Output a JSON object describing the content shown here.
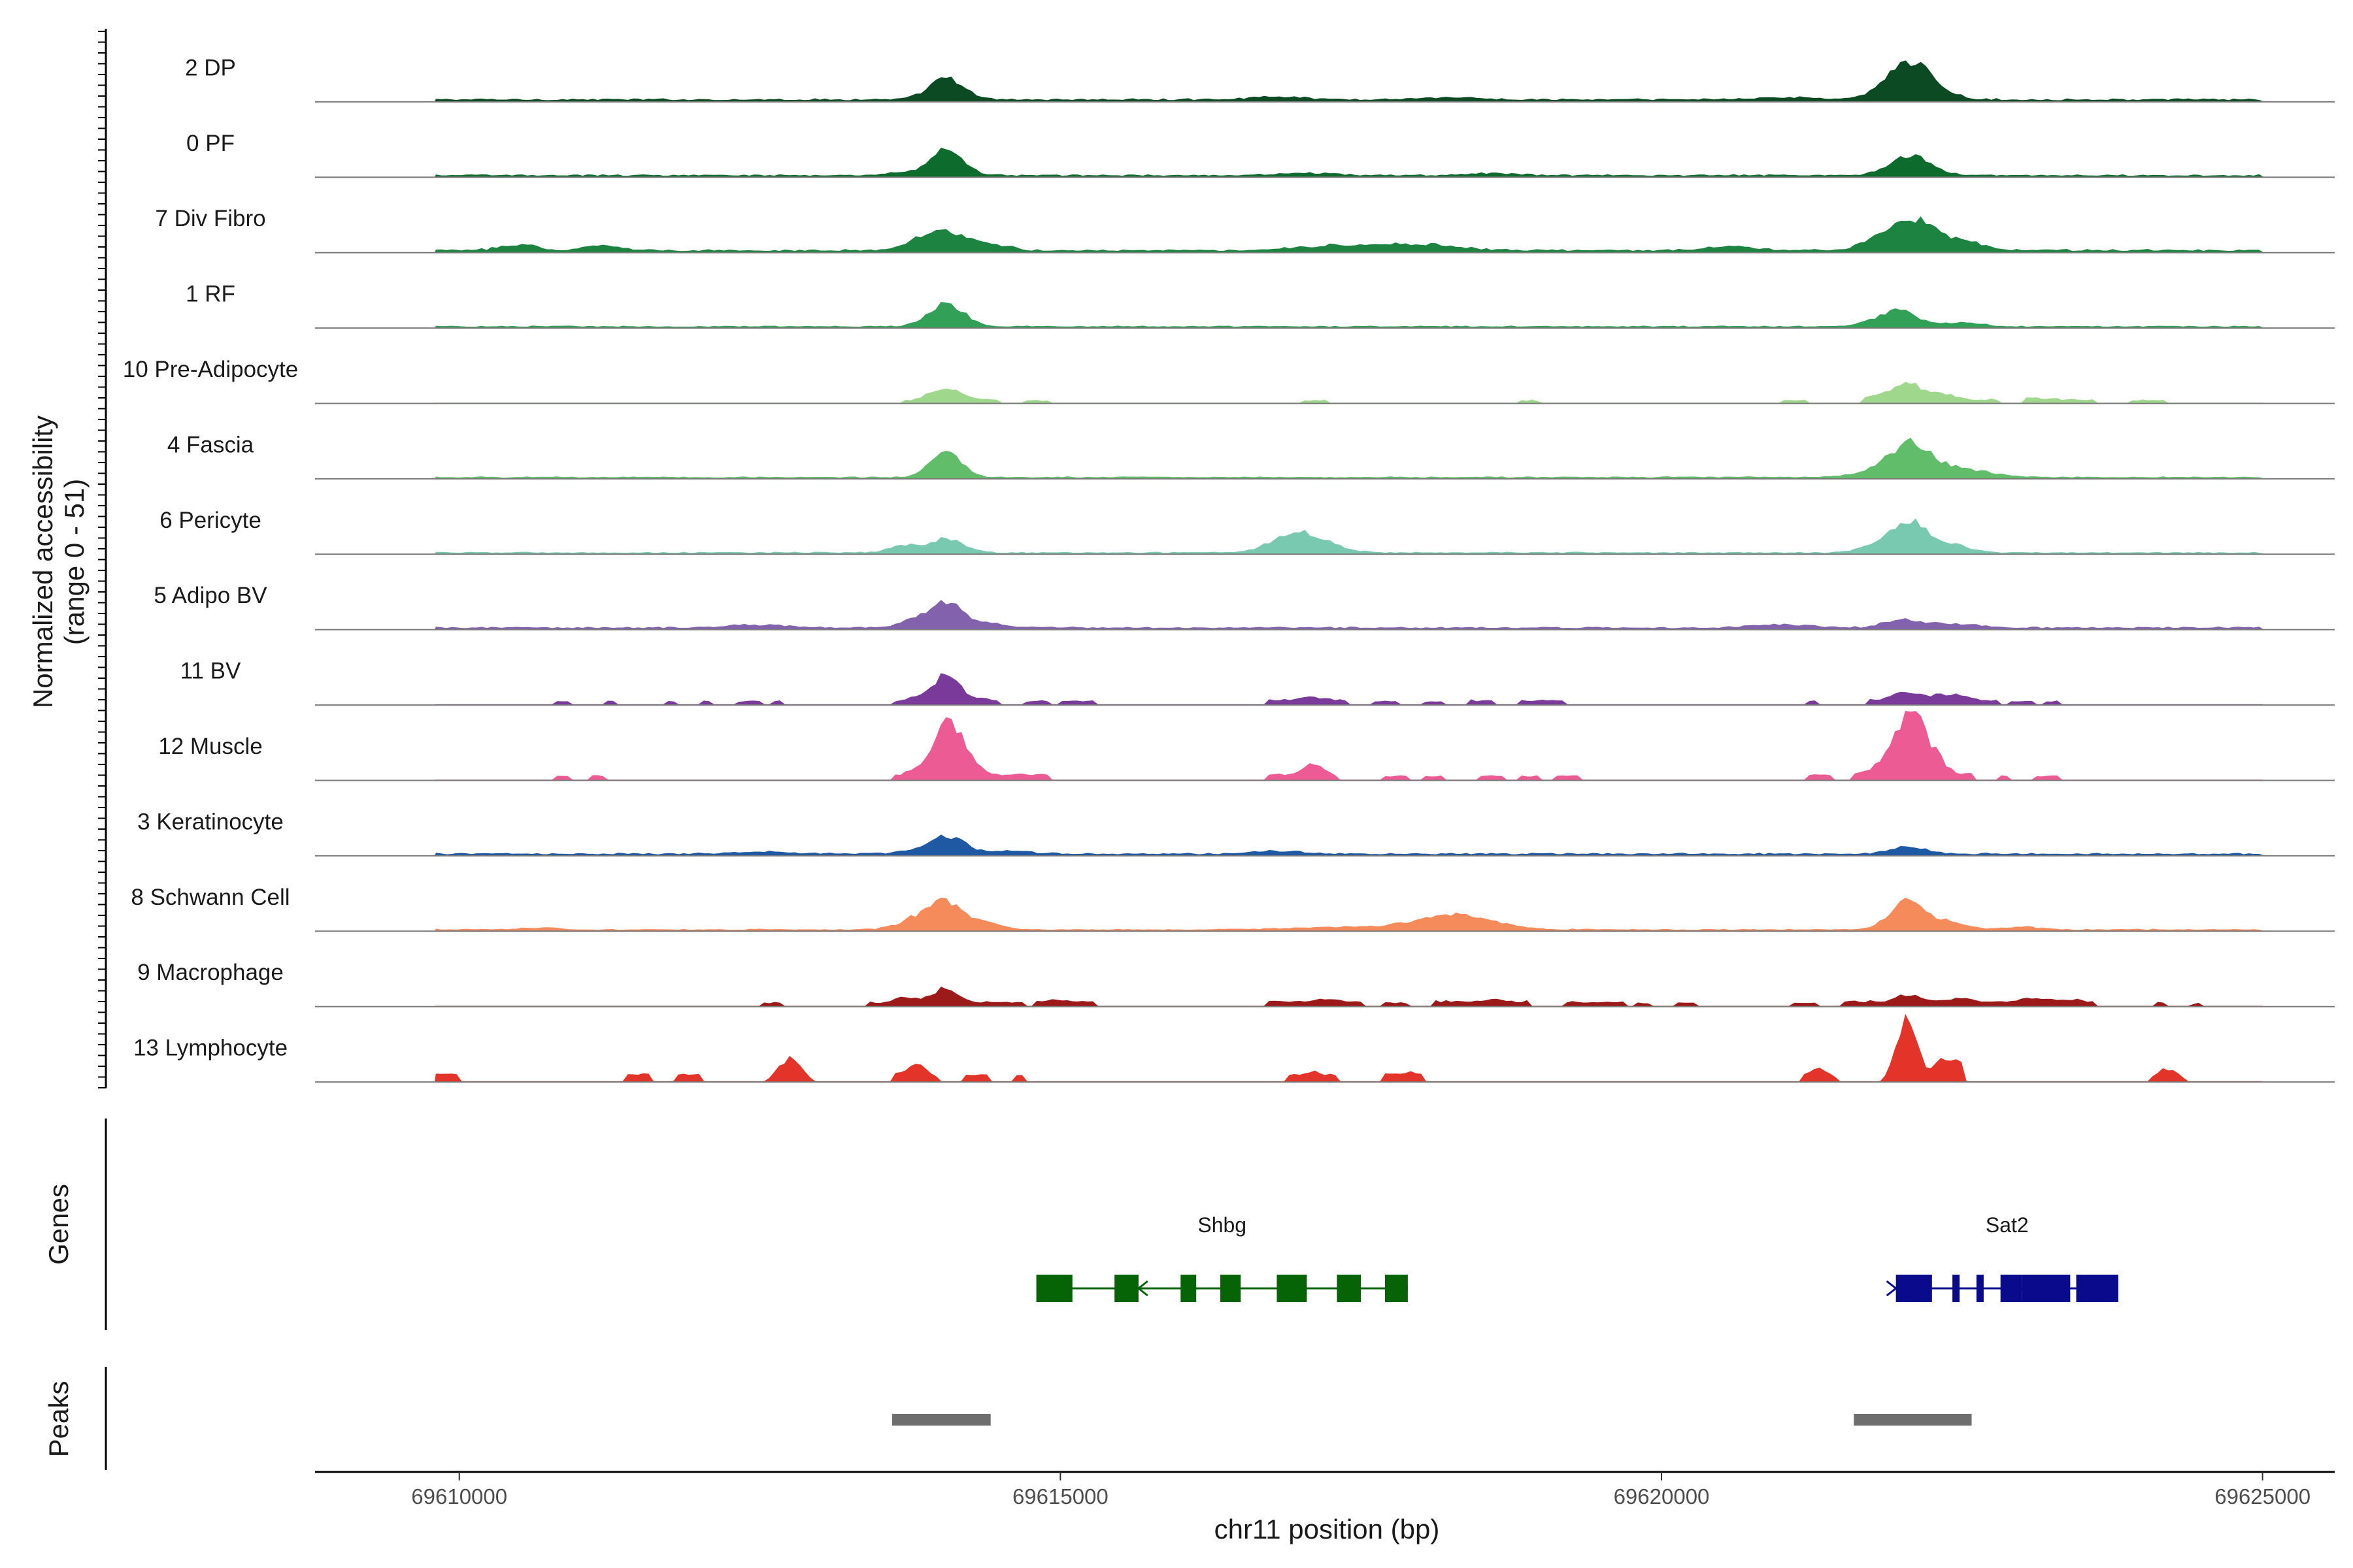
{
  "chart_data": {
    "type": "area",
    "ylabel_line1": "Normalized accessibility",
    "ylabel_line2": "(range 0 - 51)",
    "xlabel": "chr11 position (bp)",
    "xlim": [
      69608800,
      69625600
    ],
    "x_ticks": [
      69610000,
      69615000,
      69620000,
      69625000
    ],
    "x_tick_labels": [
      "69610000",
      "69615000",
      "69620000",
      "69625000"
    ],
    "ylim": [
      0,
      51
    ],
    "tracks": [
      {
        "label": "2 DP",
        "color": "#0b4a22",
        "style": "dense",
        "base": 2.5,
        "peaks": [
          [
            69614050,
            140,
            30
          ],
          [
            69622070,
            200,
            52
          ],
          [
            69616800,
            250,
            4
          ],
          [
            69618200,
            250,
            3
          ],
          [
            69621000,
            300,
            3
          ]
        ],
        "segments": []
      },
      {
        "label": "0 PF",
        "color": "#0e6b2e",
        "style": "dense",
        "base": 2,
        "peaks": [
          [
            69614060,
            130,
            40
          ],
          [
            69622070,
            170,
            28
          ],
          [
            69613700,
            150,
            4
          ],
          [
            69617000,
            250,
            3
          ],
          [
            69618600,
            200,
            3
          ]
        ],
        "segments": []
      },
      {
        "label": "7 Div Fibro",
        "color": "#1c8440",
        "style": "dense",
        "base": 2.5,
        "peaks": [
          [
            69614050,
            150,
            26
          ],
          [
            69613800,
            120,
            12
          ],
          [
            69614400,
            150,
            10
          ],
          [
            69622100,
            180,
            40
          ],
          [
            69621800,
            150,
            14
          ],
          [
            69622500,
            180,
            12
          ],
          [
            69610500,
            150,
            9
          ],
          [
            69611200,
            150,
            7
          ],
          [
            69617300,
            350,
            7
          ],
          [
            69618000,
            300,
            8
          ],
          [
            69620600,
            200,
            6
          ]
        ],
        "segments": []
      },
      {
        "label": "1 RF",
        "color": "#33a058",
        "style": "dense",
        "base": 1.5,
        "peaks": [
          [
            69614050,
            140,
            34
          ],
          [
            69622000,
            140,
            20
          ],
          [
            69621800,
            130,
            8
          ],
          [
            69622500,
            150,
            6
          ]
        ],
        "segments": []
      },
      {
        "label": "10 Pre-Adipocyte",
        "color": "#9fd88c",
        "style": "segments",
        "base": 1.5,
        "peaks": [
          [
            69614050,
            150,
            20
          ],
          [
            69622050,
            130,
            24
          ],
          [
            69621800,
            120,
            8
          ],
          [
            69622350,
            140,
            10
          ],
          [
            69623100,
            250,
            5
          ]
        ],
        "segments": [
          [
            69613700,
            69614500,
            3
          ],
          [
            69614700,
            69614900,
            2
          ],
          [
            69617000,
            69617200,
            2
          ],
          [
            69618800,
            69619000,
            2
          ],
          [
            69621000,
            69621200,
            2
          ],
          [
            69621700,
            69622800,
            3
          ],
          [
            69623000,
            69623600,
            3
          ],
          [
            69623900,
            69624200,
            2
          ]
        ]
      },
      {
        "label": "4 Fascia",
        "color": "#62bd6a",
        "style": "dense",
        "base": 1.5,
        "peaks": [
          [
            69614050,
            130,
            34
          ],
          [
            69622050,
            160,
            44
          ],
          [
            69622400,
            280,
            14
          ],
          [
            69621700,
            150,
            6
          ]
        ],
        "segments": []
      },
      {
        "label": "6 Pericyte",
        "color": "#79c9b1",
        "style": "dense",
        "base": 1.5,
        "peaks": [
          [
            69614050,
            140,
            20
          ],
          [
            69613700,
            120,
            10
          ],
          [
            69617000,
            220,
            30
          ],
          [
            69622050,
            150,
            48
          ],
          [
            69622400,
            150,
            12
          ],
          [
            69621700,
            120,
            6
          ]
        ],
        "segments": []
      },
      {
        "label": "5 Adipo BV",
        "color": "#8262ad",
        "style": "dense",
        "base": 2,
        "peaks": [
          [
            69614060,
            130,
            36
          ],
          [
            69613800,
            130,
            12
          ],
          [
            69614400,
            150,
            6
          ],
          [
            69622000,
            150,
            12
          ],
          [
            69622400,
            200,
            6
          ],
          [
            69621000,
            250,
            4
          ],
          [
            69612500,
            250,
            4
          ]
        ],
        "segments": []
      },
      {
        "label": "11 BV",
        "color": "#7a3a99",
        "style": "segments",
        "base": 1.5,
        "peaks": [
          [
            69614060,
            110,
            42
          ],
          [
            69613800,
            110,
            8
          ],
          [
            69614400,
            110,
            6
          ],
          [
            69622000,
            140,
            14
          ],
          [
            69622400,
            160,
            14
          ],
          [
            69617100,
            200,
            8
          ]
        ],
        "segments": [
          [
            69610800,
            69610900,
            3
          ],
          [
            69611200,
            69611300,
            3
          ],
          [
            69611700,
            69611800,
            3
          ],
          [
            69612000,
            69612100,
            3
          ],
          [
            69612300,
            69612500,
            3
          ],
          [
            69612600,
            69612700,
            3
          ],
          [
            69613600,
            69614500,
            4
          ],
          [
            69614700,
            69614900,
            3
          ],
          [
            69615000,
            69615300,
            3
          ],
          [
            69616700,
            69617400,
            5
          ],
          [
            69617600,
            69617800,
            3
          ],
          [
            69618000,
            69618200,
            3
          ],
          [
            69618400,
            69618600,
            4
          ],
          [
            69618800,
            69619200,
            4
          ],
          [
            69621200,
            69621300,
            4
          ],
          [
            69621700,
            69622800,
            5
          ],
          [
            69622900,
            69623100,
            3
          ],
          [
            69623200,
            69623300,
            3
          ]
        ]
      },
      {
        "label": "12 Muscle",
        "color": "#ec5b94",
        "style": "segments",
        "base": 1.5,
        "peaks": [
          [
            69614060,
            110,
            82
          ],
          [
            69614260,
            120,
            20
          ],
          [
            69613800,
            110,
            12
          ],
          [
            69622050,
            140,
            85
          ],
          [
            69622250,
            150,
            20
          ],
          [
            69621700,
            120,
            8
          ],
          [
            69617100,
            120,
            20
          ]
        ],
        "segments": [
          [
            69610800,
            69610900,
            4
          ],
          [
            69611100,
            69611200,
            4
          ],
          [
            69613600,
            69614900,
            6
          ],
          [
            69616700,
            69617300,
            6
          ],
          [
            69617700,
            69617900,
            4
          ],
          [
            69618000,
            69618200,
            4
          ],
          [
            69618500,
            69618700,
            4
          ],
          [
            69618800,
            69619000,
            4
          ],
          [
            69619100,
            69619300,
            4
          ],
          [
            69621200,
            69621400,
            6
          ],
          [
            69621700,
            69622600,
            8
          ],
          [
            69622800,
            69622900,
            4
          ],
          [
            69623100,
            69623300,
            4
          ]
        ]
      },
      {
        "label": "3 Keratinocyte",
        "color": "#1f59a3",
        "style": "dense",
        "base": 2,
        "peaks": [
          [
            69614060,
            130,
            24
          ],
          [
            69613800,
            150,
            4
          ],
          [
            69614500,
            250,
            4
          ],
          [
            69616800,
            200,
            4
          ],
          [
            69622050,
            150,
            10
          ],
          [
            69612500,
            250,
            3
          ]
        ],
        "segments": []
      },
      {
        "label": "8 Schwann Cell",
        "color": "#f58a5b",
        "style": "dense",
        "base": 1.5,
        "peaks": [
          [
            69614050,
            140,
            36
          ],
          [
            69613800,
            150,
            14
          ],
          [
            69614350,
            150,
            10
          ],
          [
            69618300,
            300,
            20
          ],
          [
            69622050,
            150,
            40
          ],
          [
            69622400,
            150,
            10
          ],
          [
            69617500,
            500,
            4
          ],
          [
            69623000,
            150,
            4
          ],
          [
            69610700,
            150,
            3
          ]
        ],
        "segments": []
      },
      {
        "label": "9 Macrophage",
        "color": "#9c1a1a",
        "style": "segments",
        "base": 1.5,
        "peaks": [
          [
            69614050,
            120,
            24
          ],
          [
            69613700,
            120,
            10
          ],
          [
            69622050,
            140,
            14
          ],
          [
            69622500,
            140,
            10
          ],
          [
            69623050,
            120,
            10
          ],
          [
            69623400,
            160,
            8
          ],
          [
            69617200,
            180,
            8
          ],
          [
            69618600,
            150,
            8
          ],
          [
            69615000,
            150,
            7
          ]
        ],
        "segments": [
          [
            69612500,
            69612700,
            3
          ],
          [
            69613400,
            69614700,
            4
          ],
          [
            69614800,
            69615300,
            5
          ],
          [
            69616700,
            69617500,
            5
          ],
          [
            69617700,
            69617900,
            3
          ],
          [
            69618100,
            69618900,
            5
          ],
          [
            69619200,
            69619700,
            4
          ],
          [
            69619800,
            69619900,
            3
          ],
          [
            69620100,
            69620300,
            3
          ],
          [
            69621100,
            69621300,
            3
          ],
          [
            69621500,
            69623000,
            5
          ],
          [
            69623200,
            69623600,
            5
          ],
          [
            69624100,
            69624200,
            3
          ],
          [
            69624400,
            69624500,
            2
          ]
        ]
      },
      {
        "label": "13 Lymphocyte",
        "color": "#e4342a",
        "style": "segments",
        "base": 0,
        "peaks": [
          [
            69622040,
            80,
            95
          ],
          [
            69622340,
            90,
            30
          ],
          [
            69612750,
            90,
            32
          ],
          [
            69613800,
            90,
            28
          ],
          [
            69621300,
            90,
            20
          ],
          [
            69617100,
            90,
            14
          ],
          [
            69617900,
            90,
            14
          ],
          [
            69624200,
            90,
            18
          ],
          [
            69609900,
            80,
            10
          ],
          [
            69611500,
            80,
            10
          ]
        ],
        "segments": [
          [
            69609800,
            69610000,
            10
          ],
          [
            69611400,
            69611600,
            10
          ],
          [
            69611800,
            69612000,
            10
          ],
          [
            69612600,
            69612900,
            12
          ],
          [
            69613600,
            69613900,
            12
          ],
          [
            69613900,
            69614000,
            8
          ],
          [
            69614200,
            69614400,
            10
          ],
          [
            69614600,
            69614700,
            10
          ],
          [
            69616900,
            69617300,
            10
          ],
          [
            69617700,
            69618000,
            10
          ],
          [
            69621200,
            69621400,
            10
          ],
          [
            69622100,
            69622300,
            6
          ],
          [
            69622300,
            69622500,
            30
          ],
          [
            69624100,
            69624300,
            10
          ]
        ]
      }
    ],
    "genes": [
      {
        "name": "Shbg",
        "color": "#066306",
        "start": 69614800,
        "end": 69617890,
        "strand": "-",
        "exons": [
          [
            69614800,
            69615100
          ],
          [
            69615450,
            69615650
          ],
          [
            69616000,
            69616130
          ],
          [
            69616330,
            69616500
          ],
          [
            69616800,
            69617050
          ],
          [
            69617300,
            69617500
          ],
          [
            69617700,
            69617800
          ],
          [
            69617760,
            69617890
          ]
        ]
      },
      {
        "name": "Sat2",
        "color": "#0a0a8c",
        "start": 69621950,
        "end": 69623800,
        "strand": "+",
        "exons": [
          [
            69621950,
            69622250
          ],
          [
            69622420,
            69622480
          ],
          [
            69622620,
            69622680
          ],
          [
            69622820,
            69623000
          ],
          [
            69623000,
            69623400
          ],
          [
            69623450,
            69623800
          ]
        ]
      }
    ],
    "peaks_track": [
      [
        69613600,
        69614420
      ],
      [
        69621600,
        69622580
      ]
    ],
    "side_titles": [
      "Genes",
      "Peaks"
    ]
  }
}
